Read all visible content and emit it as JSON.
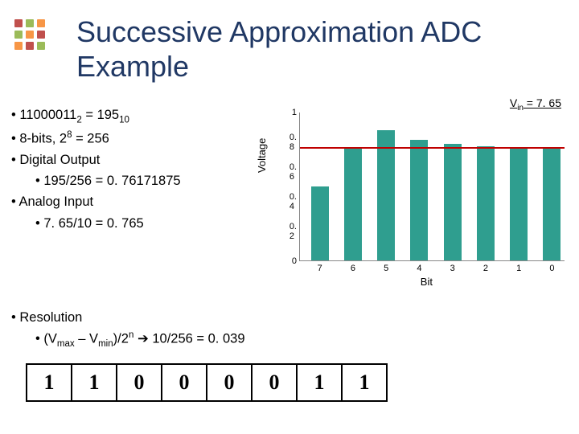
{
  "title_line1": "Successive Approximation ADC",
  "title_line2": "Example",
  "bullets": {
    "b1a": "11000011",
    "b1a_sub": "2",
    "b1b": " =  195",
    "b1b_sub": "10",
    "b2": "8-bits, 2",
    "b2_sup": "8",
    "b2_tail": " = 256",
    "b3": "Digital Output",
    "b3_sub": "195/256 = 0. 76171875",
    "b4": "Analog Input",
    "b4_sub": "7. 65/10 = 0. 765"
  },
  "chart": {
    "ylabel": "Voltage",
    "xlabel": "Bit",
    "vin_label": "V",
    "vin_sub": "in",
    "vin_tail": " = 7. 65",
    "ylim": [
      0,
      1.0
    ],
    "yticks": [
      0,
      0.2,
      0.4,
      0.6,
      0.8,
      1.0
    ],
    "ytick_labels": [
      "0",
      "0. 2",
      "0. 4",
      "0. 6",
      "0. 8",
      "1"
    ],
    "categories": [
      "7",
      "6",
      "5",
      "4",
      "3",
      "2",
      "1",
      "0"
    ],
    "values": [
      0.5,
      0.75,
      0.875,
      0.8125,
      0.78125,
      0.765625,
      0.7578125,
      0.76171875
    ],
    "bar_color": "#2f9e8f",
    "avg_value": 0.765,
    "avg_color": "#c00000"
  },
  "resolution": {
    "heading": "Resolution",
    "formula_pre": "(V",
    "formula_max": "max",
    "formula_mid": " – V",
    "formula_min": "min",
    "formula_post": ")/2",
    "formula_n": "n",
    "formula_arrow": " ➔ 10/256 = 0. 039"
  },
  "bits": [
    "1",
    "1",
    "0",
    "0",
    "0",
    "0",
    "1",
    "1"
  ],
  "logo_colors": {
    "r": "#c0504d",
    "g": "#9bbb59",
    "y": "#f79646"
  }
}
